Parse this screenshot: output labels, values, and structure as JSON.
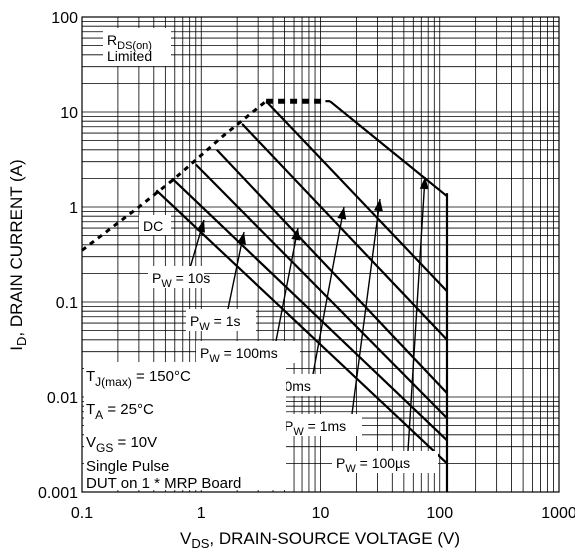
{
  "chart_data": {
    "type": "line",
    "title": "",
    "xlabel_parts": [
      "V",
      "DS",
      ", DRAIN-SOURCE VOLTAGE (V)"
    ],
    "ylabel_parts": [
      "I",
      "D",
      ", DRAIN CURRENT (A)"
    ],
    "x_scale": "log",
    "y_scale": "log",
    "xlim": [
      0.1,
      1000
    ],
    "ylim": [
      0.001,
      100
    ],
    "x_ticks": [
      {
        "value": 0.1,
        "label": "0.1"
      },
      {
        "value": 1,
        "label": "1"
      },
      {
        "value": 10,
        "label": "10"
      },
      {
        "value": 100,
        "label": "100"
      },
      {
        "value": 1000,
        "label": "1000"
      }
    ],
    "y_ticks": [
      {
        "value": 0.001,
        "label": "0.001"
      },
      {
        "value": 0.01,
        "label": "0.01"
      },
      {
        "value": 0.1,
        "label": "0.1"
      },
      {
        "value": 1,
        "label": "1"
      },
      {
        "value": 10,
        "label": "10"
      },
      {
        "value": 100,
        "label": "100"
      }
    ],
    "grid": true,
    "rds_limit": {
      "label_parts": [
        "R",
        "DS(on)",
        "Limited"
      ],
      "x": [
        0.1,
        0.3,
        0.6,
        1.5,
        3.5
      ],
      "y": [
        0.35,
        1.0,
        2.0,
        5.5,
        13
      ]
    },
    "current_limit": {
      "x": [
        3.5,
        11
      ],
      "y": [
        13,
        13
      ]
    },
    "series": [
      {
        "name": "DC",
        "x": [
          0.42,
          115
        ],
        "y": [
          1.5,
          0.002
        ]
      },
      {
        "name": "PW = 10s",
        "x": [
          0.57,
          115
        ],
        "y": [
          2.0,
          0.0035
        ]
      },
      {
        "name": "PW = 1s",
        "x": [
          0.9,
          115
        ],
        "y": [
          2.8,
          0.006
        ]
      },
      {
        "name": "PW = 100ms",
        "x": [
          1.35,
          115
        ],
        "y": [
          4.0,
          0.011
        ]
      },
      {
        "name": "PW = 10ms",
        "x": [
          2.2,
          115
        ],
        "y": [
          7.5,
          0.04
        ]
      },
      {
        "name": "PW = 1ms",
        "x": [
          3.5,
          115
        ],
        "y": [
          13,
          0.13
        ]
      },
      {
        "name": "PW = 100µs",
        "x": [
          12,
          115
        ],
        "y": [
          13,
          1.3
        ]
      }
    ],
    "voltage_limit": {
      "x": [
        115,
        115
      ],
      "y": [
        1.4,
        0.001
      ]
    },
    "annotations": {
      "dc": "DC",
      "pw_10s": {
        "prefix": "P",
        "sub": "W",
        "value": " = 10s"
      },
      "pw_1s": {
        "prefix": "P",
        "sub": "W",
        "value": " = 1s"
      },
      "pw_100ms": {
        "prefix": "P",
        "sub": "W",
        "value": " = 100ms"
      },
      "pw_10ms": {
        "prefix": "P",
        "sub": "W",
        "value": " = 10ms"
      },
      "pw_1ms": {
        "prefix": "P",
        "sub": "W",
        "value": " = 1ms"
      },
      "pw_100us": {
        "prefix": "P",
        "sub": "W",
        "value": " = 100µs"
      },
      "conditions": [
        {
          "main": "T",
          "sub": "J(max)",
          "rest": " = 150°C"
        },
        {
          "main": "T",
          "sub": "A",
          "rest": " = 25°C"
        },
        {
          "main": "V",
          "sub": "GS",
          "rest": " = 10V"
        },
        {
          "main": "Single Pulse",
          "sub": "",
          "rest": ""
        },
        {
          "main": "DUT on 1 * MRP Board",
          "sub": "",
          "rest": ""
        }
      ]
    }
  }
}
